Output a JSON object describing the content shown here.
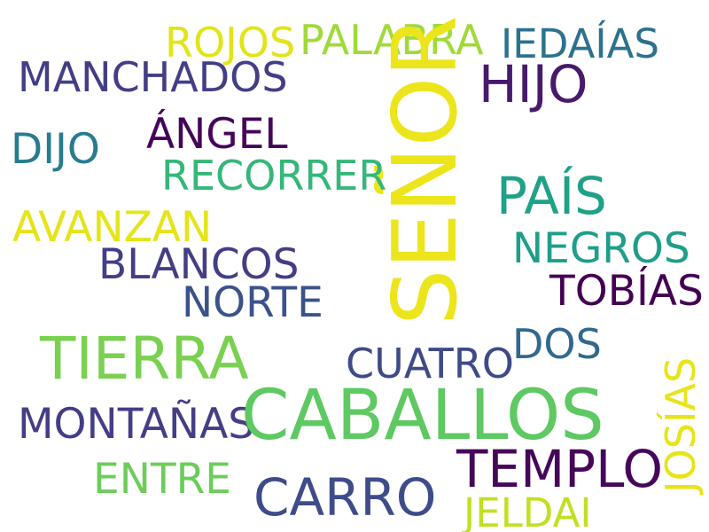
{
  "words": [
    {
      "text": "ROJOS",
      "color": "#e2e418"
    },
    {
      "text": "PALABRA",
      "color": "#a0da39"
    },
    {
      "text": "IEDAÍAS",
      "color": "#2c728e"
    },
    {
      "text": "MANCHADOS",
      "color": "#433e85"
    },
    {
      "text": "HIJO",
      "color": "#481a6c"
    },
    {
      "text": "SEÑOR",
      "color": "#ece51b"
    },
    {
      "text": "ÁNGEL",
      "color": "#450559"
    },
    {
      "text": "DIJO",
      "color": "#287c8e"
    },
    {
      "text": "RECORRER",
      "color": "#35b779"
    },
    {
      "text": "PAÍS",
      "color": "#1fa187"
    },
    {
      "text": "AVANZAN",
      "color": "#e5e419"
    },
    {
      "text": "NEGROS",
      "color": "#1f9e89"
    },
    {
      "text": "BLANCOS",
      "color": "#433e85"
    },
    {
      "text": "NORTE",
      "color": "#3b528b"
    },
    {
      "text": "TOBÍAS",
      "color": "#440154"
    },
    {
      "text": "TIERRA",
      "color": "#7ad151"
    },
    {
      "text": "CUATRO",
      "color": "#3e4a89"
    },
    {
      "text": "DOS",
      "color": "#31688e"
    },
    {
      "text": "JOSÍAS",
      "color": "#e8e419"
    },
    {
      "text": "MONTAÑAS",
      "color": "#433e85"
    },
    {
      "text": "CABALLOS",
      "color": "#5ec962"
    },
    {
      "text": "ENTRE",
      "color": "#6ccd5a"
    },
    {
      "text": "TEMPLO",
      "color": "#46075a"
    },
    {
      "text": "CARRO",
      "color": "#3e4c8a"
    },
    {
      "text": "JELDAI",
      "color": "#c2df23"
    }
  ]
}
